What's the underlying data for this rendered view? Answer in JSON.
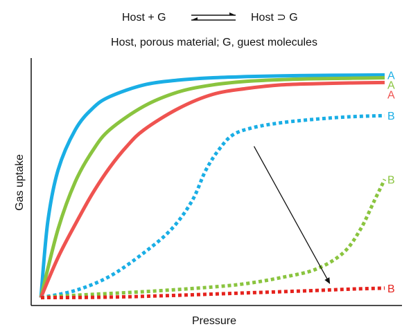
{
  "header": {
    "equation_left": "Host + G",
    "equation_right": "Host ⊃ G",
    "subtitle": "Host, porous material; G, guest molecules"
  },
  "chart_data": {
    "type": "line",
    "xlabel": "Pressure",
    "ylabel": "Gas uptake",
    "xlim": [
      0,
      1
    ],
    "ylim": [
      0,
      1
    ],
    "grid": false,
    "series": [
      {
        "name": "A",
        "color": "#1aaee5",
        "style": "solid",
        "points": [
          [
            0,
            0.01
          ],
          [
            0.02,
            0.33
          ],
          [
            0.05,
            0.55
          ],
          [
            0.1,
            0.72
          ],
          [
            0.15,
            0.81
          ],
          [
            0.2,
            0.86
          ],
          [
            0.3,
            0.91
          ],
          [
            0.4,
            0.93
          ],
          [
            0.5,
            0.94
          ],
          [
            0.6,
            0.945
          ],
          [
            0.7,
            0.948
          ],
          [
            0.8,
            0.95
          ],
          [
            0.9,
            0.951
          ],
          [
            1,
            0.952
          ]
        ]
      },
      {
        "name": "A",
        "color": "#8ac43f",
        "style": "solid",
        "points": [
          [
            0,
            0.01
          ],
          [
            0.05,
            0.3
          ],
          [
            0.1,
            0.5
          ],
          [
            0.15,
            0.63
          ],
          [
            0.2,
            0.72
          ],
          [
            0.3,
            0.82
          ],
          [
            0.4,
            0.88
          ],
          [
            0.5,
            0.91
          ],
          [
            0.6,
            0.925
          ],
          [
            0.7,
            0.932
          ],
          [
            0.8,
            0.936
          ],
          [
            0.9,
            0.938
          ],
          [
            1,
            0.94
          ]
        ]
      },
      {
        "name": "A",
        "color": "#ef5350",
        "style": "solid",
        "points": [
          [
            0,
            0.01
          ],
          [
            0.05,
            0.18
          ],
          [
            0.1,
            0.32
          ],
          [
            0.15,
            0.45
          ],
          [
            0.2,
            0.56
          ],
          [
            0.25,
            0.65
          ],
          [
            0.3,
            0.72
          ],
          [
            0.4,
            0.81
          ],
          [
            0.5,
            0.87
          ],
          [
            0.6,
            0.895
          ],
          [
            0.7,
            0.91
          ],
          [
            0.8,
            0.915
          ],
          [
            0.9,
            0.918
          ],
          [
            1,
            0.92
          ]
        ]
      },
      {
        "name": "B",
        "color": "#1aaee5",
        "style": "dotted",
        "points": [
          [
            0,
            0.01
          ],
          [
            0.1,
            0.04
          ],
          [
            0.2,
            0.1
          ],
          [
            0.3,
            0.2
          ],
          [
            0.38,
            0.3
          ],
          [
            0.44,
            0.42
          ],
          [
            0.48,
            0.55
          ],
          [
            0.52,
            0.64
          ],
          [
            0.56,
            0.7
          ],
          [
            0.62,
            0.73
          ],
          [
            0.7,
            0.75
          ],
          [
            0.8,
            0.765
          ],
          [
            0.9,
            0.775
          ],
          [
            1,
            0.78
          ]
        ]
      },
      {
        "name": "B",
        "color": "#8ac43f",
        "style": "dotted",
        "points": [
          [
            0,
            0.01
          ],
          [
            0.1,
            0.02
          ],
          [
            0.3,
            0.035
          ],
          [
            0.5,
            0.055
          ],
          [
            0.6,
            0.07
          ],
          [
            0.7,
            0.095
          ],
          [
            0.8,
            0.13
          ],
          [
            0.88,
            0.2
          ],
          [
            0.93,
            0.3
          ],
          [
            0.97,
            0.42
          ],
          [
            1,
            0.51
          ]
        ]
      },
      {
        "name": "B",
        "color": "#e5221d",
        "style": "dotted",
        "points": [
          [
            0,
            0.01
          ],
          [
            0.2,
            0.012
          ],
          [
            0.4,
            0.02
          ],
          [
            0.6,
            0.03
          ],
          [
            0.8,
            0.04
          ],
          [
            0.9,
            0.046
          ],
          [
            1,
            0.05
          ]
        ]
      }
    ],
    "annotations": [
      {
        "type": "arrow",
        "from": [
          0.62,
          0.65
        ],
        "to": [
          0.84,
          0.07
        ]
      }
    ]
  }
}
